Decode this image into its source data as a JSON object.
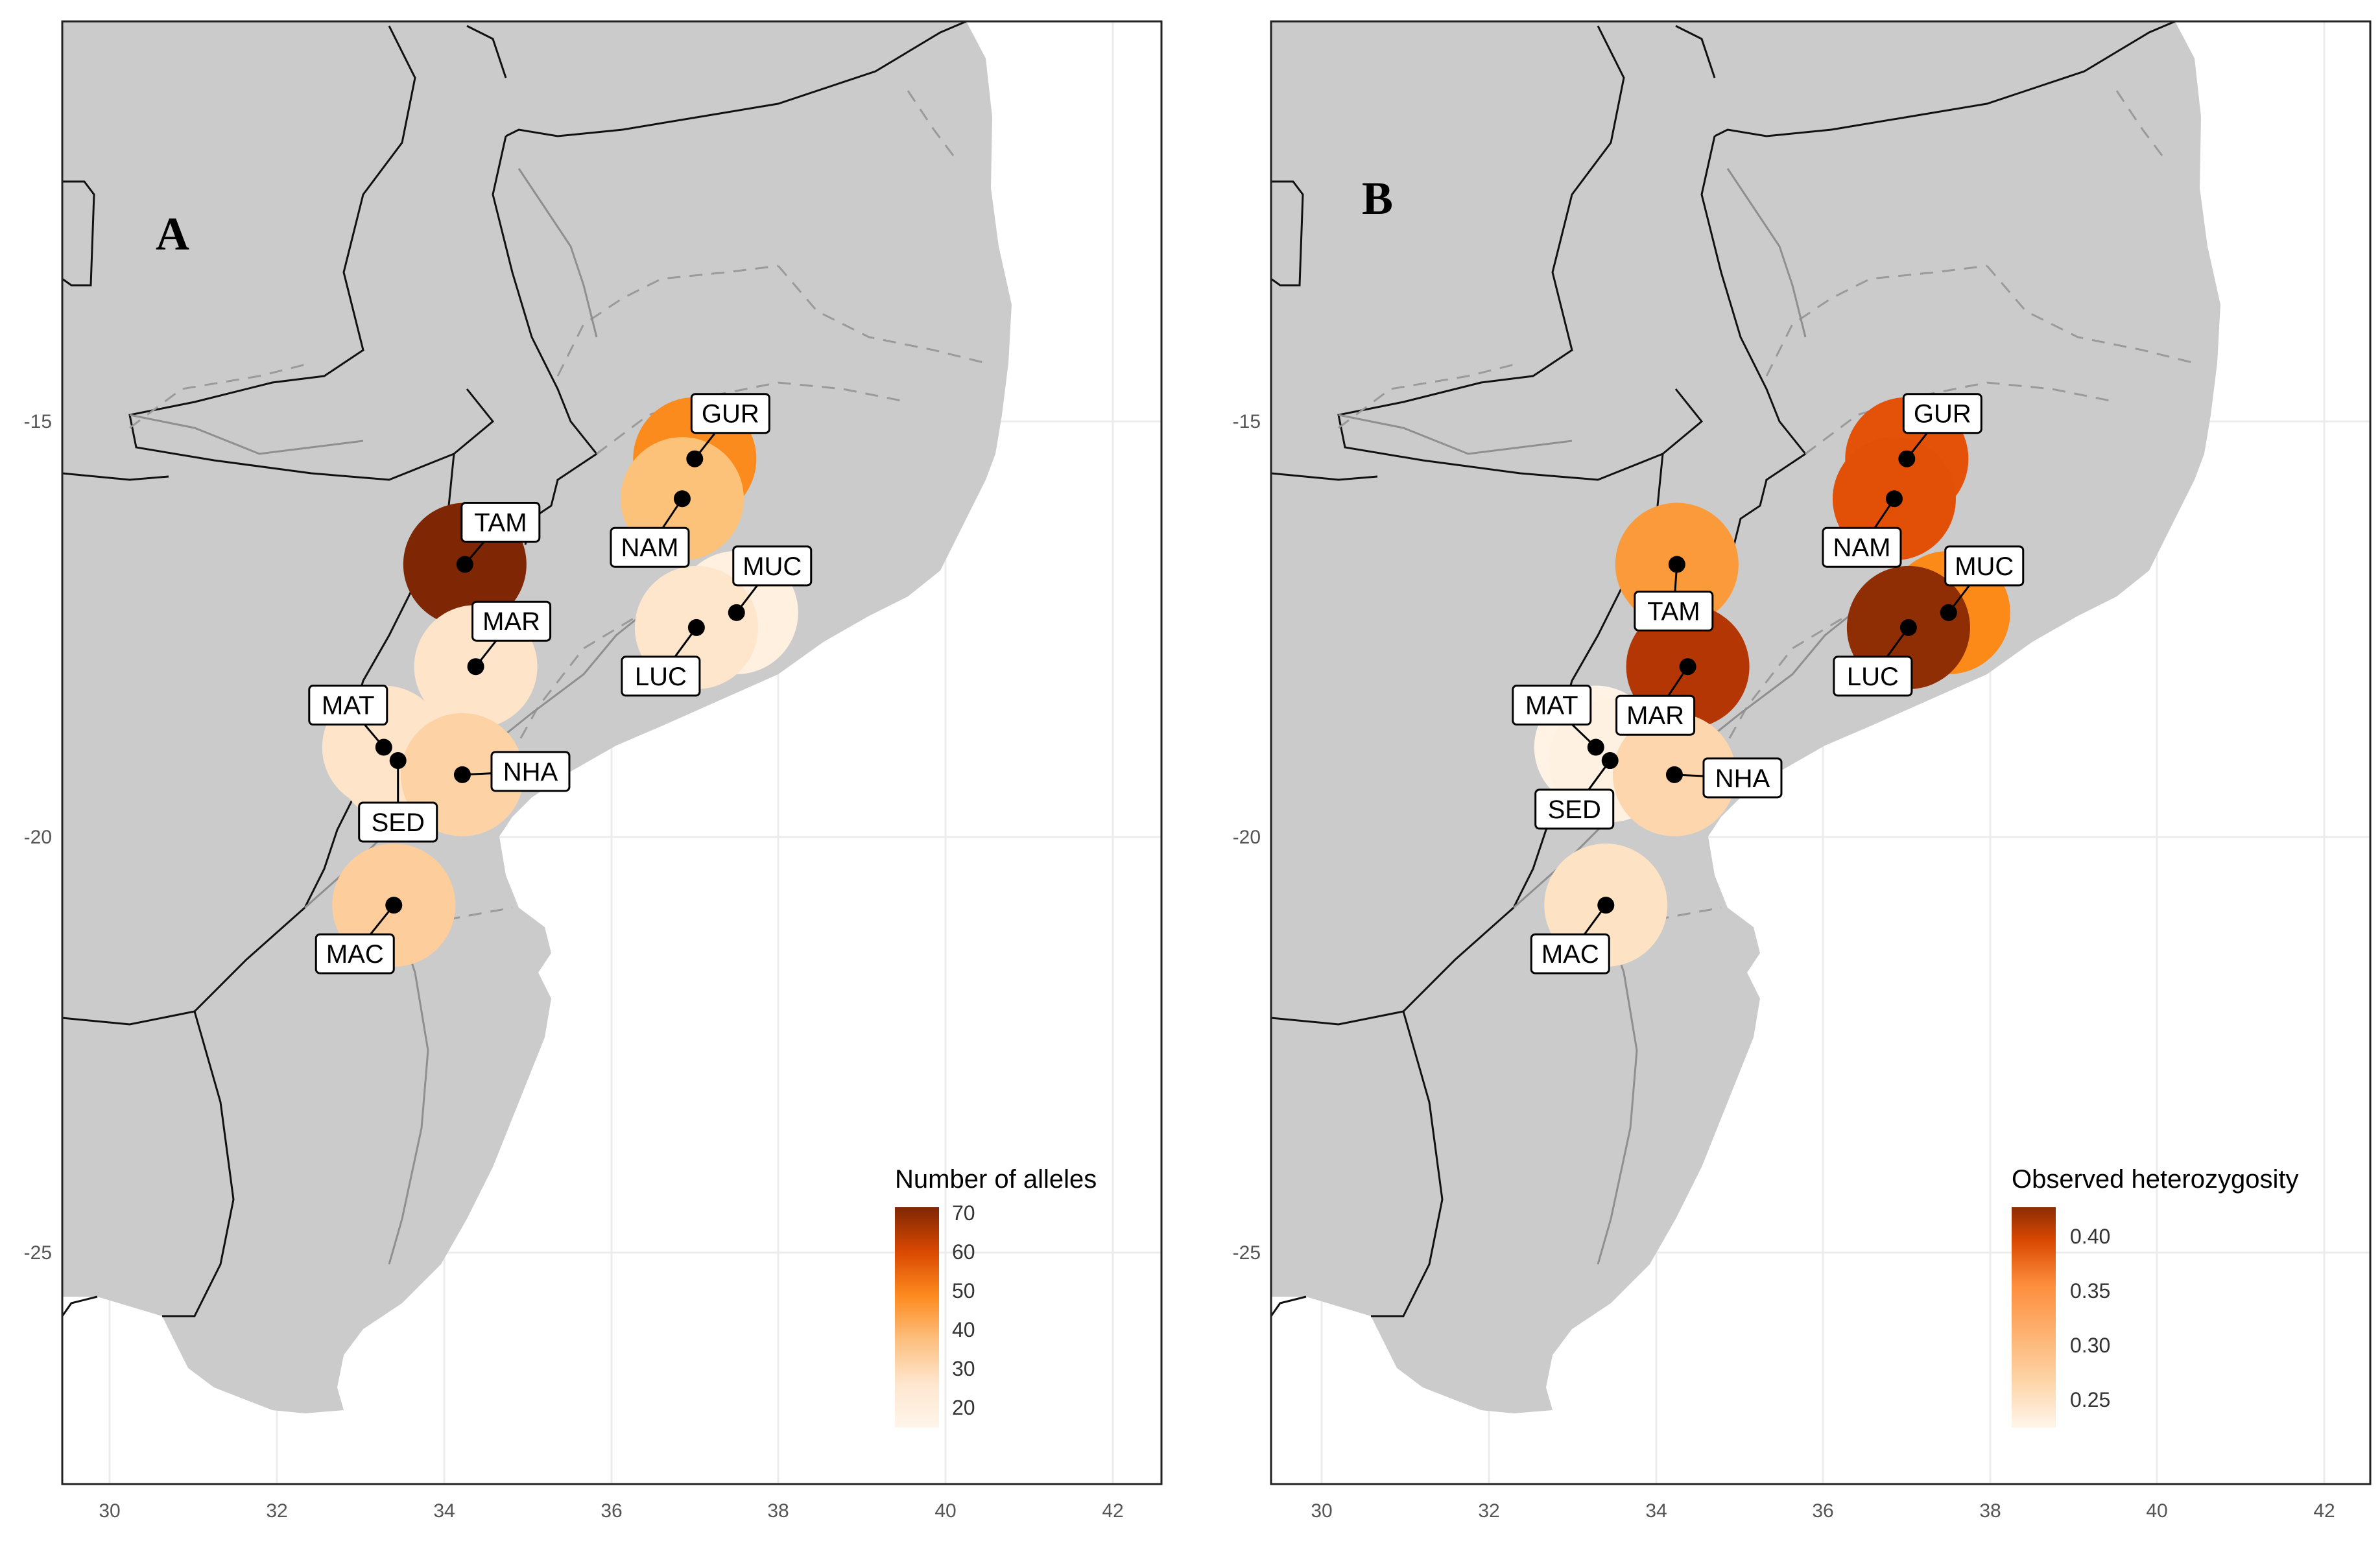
{
  "panels": [
    {
      "letter": "A",
      "legend_title": "Number of alleles",
      "legend_ticks": [
        "70",
        "60",
        "50",
        "40",
        "30",
        "20"
      ],
      "site_colors": {
        "GUR": "#fb8b1c",
        "NAM": "#fdc27a",
        "TAM": "#7f2704",
        "MAR": "#fee4c8",
        "MUC": "#fff0e0",
        "LUC": "#fee6cc",
        "MAT": "#fee4c8",
        "SED": "#fee4c8",
        "NHA": "#fdd3a6",
        "MAC": "#fdcd9b"
      }
    },
    {
      "letter": "B",
      "legend_title": "Observed heterozygosity",
      "legend_ticks": [
        "0.40",
        "0.35",
        "0.30",
        "0.25"
      ],
      "site_colors": {
        "GUR": "#e4520a",
        "NAM": "#e25008",
        "TAM": "#fb9a3a",
        "MAR": "#b33604",
        "MUC": "#fb8a18",
        "LUC": "#8f2d04",
        "MAT": "#fff3e6",
        "SED": "#fff1e2",
        "NHA": "#fdd6ad",
        "MAC": "#fee2c4"
      }
    }
  ],
  "axes": {
    "x_ticks": [
      "30",
      "32",
      "34",
      "36",
      "38",
      "40",
      "42"
    ],
    "y_ticks": [
      "-15",
      "-20",
      "-25"
    ]
  },
  "sites": [
    {
      "label": "GUR",
      "lon": 37.0,
      "lat": -15.45
    },
    {
      "label": "NAM",
      "lon": 36.85,
      "lat": -15.93
    },
    {
      "label": "TAM",
      "lon": 34.25,
      "lat": -16.72
    },
    {
      "label": "MAR",
      "lon": 34.38,
      "lat": -17.95
    },
    {
      "label": "MUC",
      "lon": 37.5,
      "lat": -17.3
    },
    {
      "label": "LUC",
      "lon": 37.02,
      "lat": -17.48
    },
    {
      "label": "MAT",
      "lon": 33.28,
      "lat": -18.92
    },
    {
      "label": "SED",
      "lon": 33.45,
      "lat": -19.08
    },
    {
      "label": "NHA",
      "lon": 34.22,
      "lat": -19.25
    },
    {
      "label": "MAC",
      "lon": 33.4,
      "lat": -20.82
    }
  ],
  "colors": {
    "land": "#cbcbcb",
    "border": "#111111",
    "dashed_boundary": "#9a9a9a",
    "river": "#8f8f8f",
    "grid": "#ececec"
  }
}
